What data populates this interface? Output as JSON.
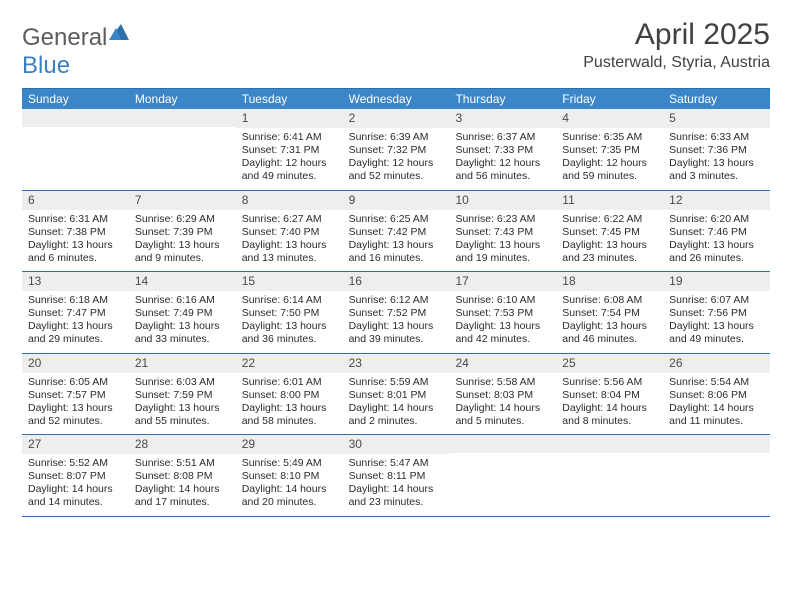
{
  "logo": {
    "text_general": "General",
    "text_blue": "Blue"
  },
  "title": "April 2025",
  "location": "Pusterwald, Styria, Austria",
  "colors": {
    "header_bg": "#3b86c8",
    "header_border": "#2f6faa",
    "daynum_bg": "#eceeef",
    "text": "#2b2b2b",
    "title_text": "#414141"
  },
  "day_names": [
    "Sunday",
    "Monday",
    "Tuesday",
    "Wednesday",
    "Thursday",
    "Friday",
    "Saturday"
  ],
  "weeks": [
    [
      null,
      null,
      {
        "n": "1",
        "sunrise": "Sunrise: 6:41 AM",
        "sunset": "Sunset: 7:31 PM",
        "daylight": "Daylight: 12 hours and 49 minutes."
      },
      {
        "n": "2",
        "sunrise": "Sunrise: 6:39 AM",
        "sunset": "Sunset: 7:32 PM",
        "daylight": "Daylight: 12 hours and 52 minutes."
      },
      {
        "n": "3",
        "sunrise": "Sunrise: 6:37 AM",
        "sunset": "Sunset: 7:33 PM",
        "daylight": "Daylight: 12 hours and 56 minutes."
      },
      {
        "n": "4",
        "sunrise": "Sunrise: 6:35 AM",
        "sunset": "Sunset: 7:35 PM",
        "daylight": "Daylight: 12 hours and 59 minutes."
      },
      {
        "n": "5",
        "sunrise": "Sunrise: 6:33 AM",
        "sunset": "Sunset: 7:36 PM",
        "daylight": "Daylight: 13 hours and 3 minutes."
      }
    ],
    [
      {
        "n": "6",
        "sunrise": "Sunrise: 6:31 AM",
        "sunset": "Sunset: 7:38 PM",
        "daylight": "Daylight: 13 hours and 6 minutes."
      },
      {
        "n": "7",
        "sunrise": "Sunrise: 6:29 AM",
        "sunset": "Sunset: 7:39 PM",
        "daylight": "Daylight: 13 hours and 9 minutes."
      },
      {
        "n": "8",
        "sunrise": "Sunrise: 6:27 AM",
        "sunset": "Sunset: 7:40 PM",
        "daylight": "Daylight: 13 hours and 13 minutes."
      },
      {
        "n": "9",
        "sunrise": "Sunrise: 6:25 AM",
        "sunset": "Sunset: 7:42 PM",
        "daylight": "Daylight: 13 hours and 16 minutes."
      },
      {
        "n": "10",
        "sunrise": "Sunrise: 6:23 AM",
        "sunset": "Sunset: 7:43 PM",
        "daylight": "Daylight: 13 hours and 19 minutes."
      },
      {
        "n": "11",
        "sunrise": "Sunrise: 6:22 AM",
        "sunset": "Sunset: 7:45 PM",
        "daylight": "Daylight: 13 hours and 23 minutes."
      },
      {
        "n": "12",
        "sunrise": "Sunrise: 6:20 AM",
        "sunset": "Sunset: 7:46 PM",
        "daylight": "Daylight: 13 hours and 26 minutes."
      }
    ],
    [
      {
        "n": "13",
        "sunrise": "Sunrise: 6:18 AM",
        "sunset": "Sunset: 7:47 PM",
        "daylight": "Daylight: 13 hours and 29 minutes."
      },
      {
        "n": "14",
        "sunrise": "Sunrise: 6:16 AM",
        "sunset": "Sunset: 7:49 PM",
        "daylight": "Daylight: 13 hours and 33 minutes."
      },
      {
        "n": "15",
        "sunrise": "Sunrise: 6:14 AM",
        "sunset": "Sunset: 7:50 PM",
        "daylight": "Daylight: 13 hours and 36 minutes."
      },
      {
        "n": "16",
        "sunrise": "Sunrise: 6:12 AM",
        "sunset": "Sunset: 7:52 PM",
        "daylight": "Daylight: 13 hours and 39 minutes."
      },
      {
        "n": "17",
        "sunrise": "Sunrise: 6:10 AM",
        "sunset": "Sunset: 7:53 PM",
        "daylight": "Daylight: 13 hours and 42 minutes."
      },
      {
        "n": "18",
        "sunrise": "Sunrise: 6:08 AM",
        "sunset": "Sunset: 7:54 PM",
        "daylight": "Daylight: 13 hours and 46 minutes."
      },
      {
        "n": "19",
        "sunrise": "Sunrise: 6:07 AM",
        "sunset": "Sunset: 7:56 PM",
        "daylight": "Daylight: 13 hours and 49 minutes."
      }
    ],
    [
      {
        "n": "20",
        "sunrise": "Sunrise: 6:05 AM",
        "sunset": "Sunset: 7:57 PM",
        "daylight": "Daylight: 13 hours and 52 minutes."
      },
      {
        "n": "21",
        "sunrise": "Sunrise: 6:03 AM",
        "sunset": "Sunset: 7:59 PM",
        "daylight": "Daylight: 13 hours and 55 minutes."
      },
      {
        "n": "22",
        "sunrise": "Sunrise: 6:01 AM",
        "sunset": "Sunset: 8:00 PM",
        "daylight": "Daylight: 13 hours and 58 minutes."
      },
      {
        "n": "23",
        "sunrise": "Sunrise: 5:59 AM",
        "sunset": "Sunset: 8:01 PM",
        "daylight": "Daylight: 14 hours and 2 minutes."
      },
      {
        "n": "24",
        "sunrise": "Sunrise: 5:58 AM",
        "sunset": "Sunset: 8:03 PM",
        "daylight": "Daylight: 14 hours and 5 minutes."
      },
      {
        "n": "25",
        "sunrise": "Sunrise: 5:56 AM",
        "sunset": "Sunset: 8:04 PM",
        "daylight": "Daylight: 14 hours and 8 minutes."
      },
      {
        "n": "26",
        "sunrise": "Sunrise: 5:54 AM",
        "sunset": "Sunset: 8:06 PM",
        "daylight": "Daylight: 14 hours and 11 minutes."
      }
    ],
    [
      {
        "n": "27",
        "sunrise": "Sunrise: 5:52 AM",
        "sunset": "Sunset: 8:07 PM",
        "daylight": "Daylight: 14 hours and 14 minutes."
      },
      {
        "n": "28",
        "sunrise": "Sunrise: 5:51 AM",
        "sunset": "Sunset: 8:08 PM",
        "daylight": "Daylight: 14 hours and 17 minutes."
      },
      {
        "n": "29",
        "sunrise": "Sunrise: 5:49 AM",
        "sunset": "Sunset: 8:10 PM",
        "daylight": "Daylight: 14 hours and 20 minutes."
      },
      {
        "n": "30",
        "sunrise": "Sunrise: 5:47 AM",
        "sunset": "Sunset: 8:11 PM",
        "daylight": "Daylight: 14 hours and 23 minutes."
      },
      null,
      null,
      null
    ]
  ]
}
